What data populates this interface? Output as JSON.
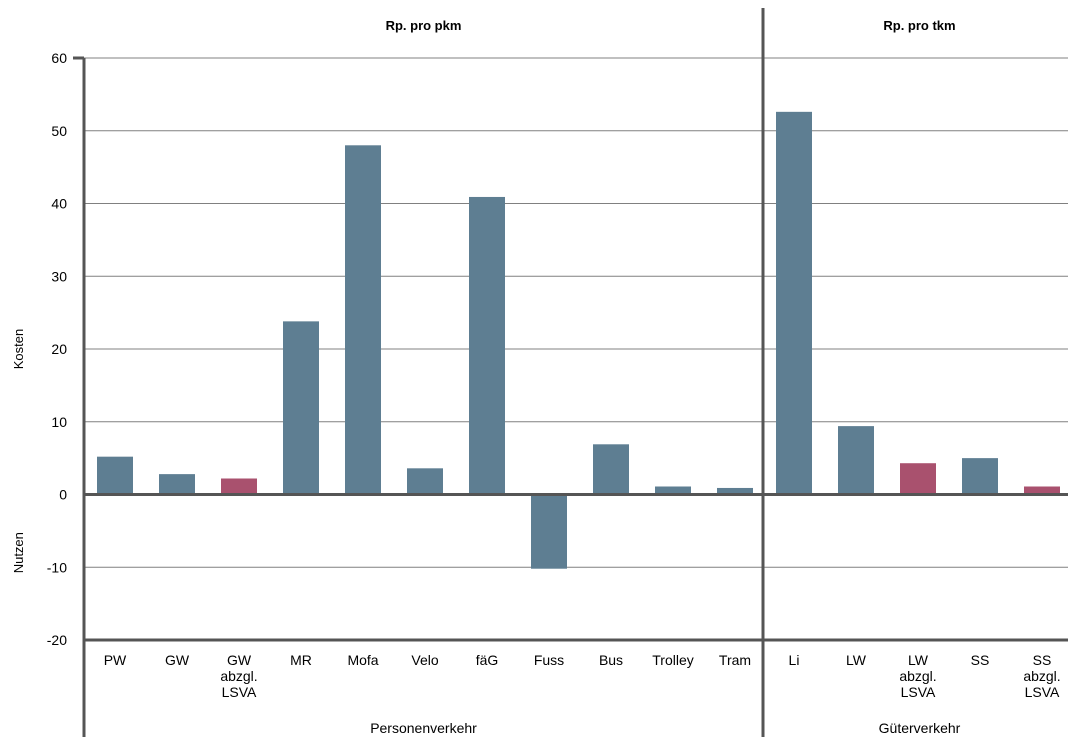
{
  "chart_data": {
    "type": "bar",
    "ylim": [
      -20,
      60
    ],
    "yticks": [
      60,
      50,
      40,
      30,
      20,
      10,
      0,
      -10,
      -20
    ],
    "ylabel_upper": "Kosten",
    "ylabel_lower": "Nutzen",
    "grid": true,
    "colors": {
      "default": "#5E7E92",
      "highlight": "#A9516E"
    },
    "groups": [
      {
        "title": "Rp. pro pkm",
        "label": "Personenverkehr"
      },
      {
        "title": "Rp. pro tkm",
        "label": "Güterverkehr"
      }
    ],
    "categories": [
      {
        "label": [
          "PW"
        ],
        "value": 5.2,
        "group": 0,
        "highlight": false
      },
      {
        "label": [
          "GW"
        ],
        "value": 2.8,
        "group": 0,
        "highlight": false
      },
      {
        "label": [
          "GW",
          "abzgl.",
          "LSVA"
        ],
        "value": 2.2,
        "group": 0,
        "highlight": true
      },
      {
        "label": [
          "MR"
        ],
        "value": 23.8,
        "group": 0,
        "highlight": false
      },
      {
        "label": [
          "Mofa"
        ],
        "value": 48.0,
        "group": 0,
        "highlight": false
      },
      {
        "label": [
          "Velo"
        ],
        "value": 3.6,
        "group": 0,
        "highlight": false
      },
      {
        "label": [
          "fäG"
        ],
        "value": 40.9,
        "group": 0,
        "highlight": false
      },
      {
        "label": [
          "Fuss"
        ],
        "value": -10.2,
        "group": 0,
        "highlight": false
      },
      {
        "label": [
          "Bus"
        ],
        "value": 6.9,
        "group": 0,
        "highlight": false
      },
      {
        "label": [
          "Trolley"
        ],
        "value": 1.1,
        "group": 0,
        "highlight": false
      },
      {
        "label": [
          "Tram"
        ],
        "value": 0.9,
        "group": 0,
        "highlight": false
      },
      {
        "label": [
          "Li"
        ],
        "value": 52.6,
        "group": 1,
        "highlight": false
      },
      {
        "label": [
          "LW"
        ],
        "value": 9.4,
        "group": 1,
        "highlight": false
      },
      {
        "label": [
          "LW",
          "abzgl.",
          "LSVA"
        ],
        "value": 4.3,
        "group": 1,
        "highlight": true
      },
      {
        "label": [
          "SS"
        ],
        "value": 5.0,
        "group": 1,
        "highlight": false
      },
      {
        "label": [
          "SS",
          "abzgl.",
          "LSVA"
        ],
        "value": 1.1,
        "group": 1,
        "highlight": true
      }
    ]
  }
}
